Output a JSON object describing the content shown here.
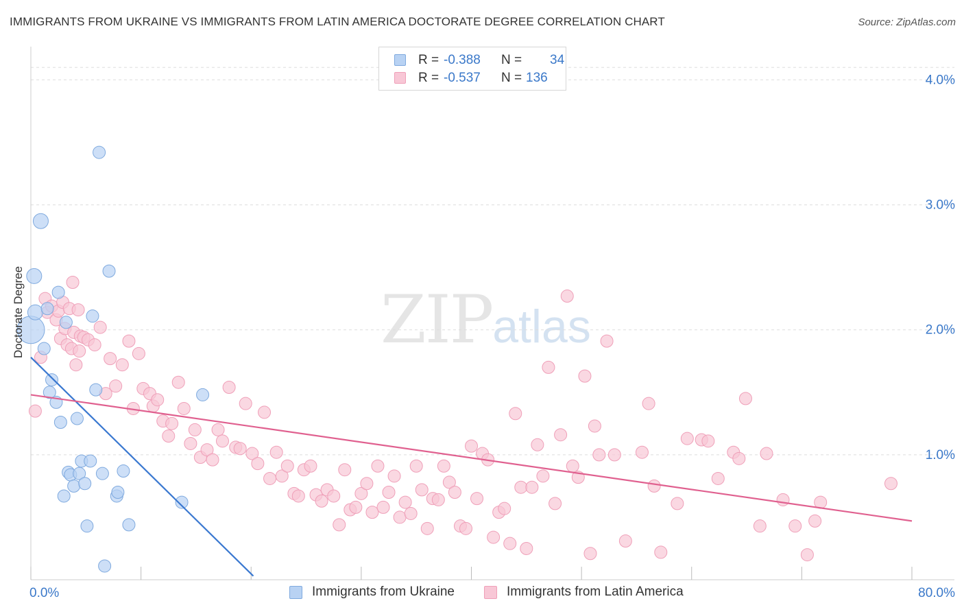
{
  "title": "IMMIGRANTS FROM UKRAINE VS IMMIGRANTS FROM LATIN AMERICA DOCTORATE DEGREE CORRELATION CHART",
  "source": "Source: ZipAtlas.com",
  "watermark": {
    "zip": "ZIP",
    "atlas": "atlas"
  },
  "colors": {
    "ukraine_fill": "#b8d2f3",
    "ukraine_stroke": "#7ea9de",
    "ukraine_line": "#3a78d0",
    "latam_fill": "#f8c7d6",
    "latam_stroke": "#ef9fb8",
    "latam_line": "#e0608f",
    "axis_text": "#3a78c9",
    "grid": "#dddddd"
  },
  "legend": {
    "rows": [
      {
        "r_label": "R =",
        "r_value": "-0.388",
        "n_label": "N =",
        "n_value": "34"
      },
      {
        "r_label": "R =",
        "r_value": "-0.537",
        "n_label": "N =",
        "n_value": "136"
      }
    ]
  },
  "bottom_legend": [
    "Immigrants from Ukraine",
    "Immigrants from Latin America"
  ],
  "chart_data": {
    "type": "scatter",
    "title": "IMMIGRANTS FROM UKRAINE VS IMMIGRANTS FROM LATIN AMERICA DOCTORATE DEGREE CORRELATION CHART",
    "xlabel": "",
    "ylabel": "Doctorate Degree",
    "xlim": [
      0,
      80
    ],
    "ylim": [
      0,
      4.2
    ],
    "x_tick_labels": [
      "0.0%",
      "80.0%"
    ],
    "y_ticks": [
      1.0,
      2.0,
      3.0,
      4.0
    ],
    "y_tick_labels": [
      "1.0%",
      "2.0%",
      "3.0%",
      "4.0%"
    ],
    "grid": true,
    "legend_position": "top-center",
    "series": [
      {
        "name": "Immigrants from Ukraine",
        "r": -0.388,
        "n": 34,
        "trend": [
          [
            0.0,
            1.78
          ],
          [
            20.2,
            0.03
          ]
        ],
        "points": [
          [
            0.0,
            2.0
          ],
          [
            0.3,
            2.43
          ],
          [
            0.4,
            2.14
          ],
          [
            0.9,
            2.87
          ],
          [
            1.2,
            1.85
          ],
          [
            1.5,
            2.17
          ],
          [
            1.7,
            1.5
          ],
          [
            1.9,
            1.6
          ],
          [
            2.3,
            1.42
          ],
          [
            2.5,
            2.3
          ],
          [
            2.7,
            1.26
          ],
          [
            3.0,
            0.67
          ],
          [
            3.2,
            2.06
          ],
          [
            3.4,
            0.86
          ],
          [
            3.6,
            0.84
          ],
          [
            3.9,
            0.75
          ],
          [
            4.2,
            1.29
          ],
          [
            4.4,
            0.85
          ],
          [
            4.6,
            0.95
          ],
          [
            4.9,
            0.77
          ],
          [
            5.1,
            0.43
          ],
          [
            5.4,
            0.95
          ],
          [
            5.6,
            2.11
          ],
          [
            5.9,
            1.52
          ],
          [
            6.2,
            3.42
          ],
          [
            6.5,
            0.85
          ],
          [
            6.7,
            0.11
          ],
          [
            7.1,
            2.47
          ],
          [
            7.8,
            0.67
          ],
          [
            7.9,
            0.7
          ],
          [
            8.4,
            0.87
          ],
          [
            8.9,
            0.44
          ],
          [
            13.7,
            0.62
          ],
          [
            15.6,
            1.48
          ]
        ]
      },
      {
        "name": "Immigrants from Latin America",
        "r": -0.537,
        "n": 136,
        "trend": [
          [
            0.0,
            1.48
          ],
          [
            80.0,
            0.47
          ]
        ],
        "points": [
          [
            0.4,
            1.35
          ],
          [
            0.9,
            1.78
          ],
          [
            1.3,
            2.25
          ],
          [
            1.5,
            2.14
          ],
          [
            1.9,
            2.19
          ],
          [
            2.3,
            2.08
          ],
          [
            2.5,
            2.15
          ],
          [
            2.7,
            1.93
          ],
          [
            2.9,
            2.22
          ],
          [
            3.1,
            2.01
          ],
          [
            3.3,
            1.88
          ],
          [
            3.5,
            2.17
          ],
          [
            3.7,
            1.85
          ],
          [
            3.9,
            1.98
          ],
          [
            4.1,
            1.72
          ],
          [
            3.8,
            2.38
          ],
          [
            4.3,
            2.16
          ],
          [
            4.5,
            1.95
          ],
          [
            4.8,
            1.94
          ],
          [
            5.2,
            1.92
          ],
          [
            4.4,
            1.83
          ],
          [
            5.8,
            1.88
          ],
          [
            6.3,
            2.02
          ],
          [
            6.8,
            1.49
          ],
          [
            7.2,
            1.77
          ],
          [
            7.7,
            1.55
          ],
          [
            8.3,
            1.72
          ],
          [
            8.9,
            1.91
          ],
          [
            9.3,
            1.37
          ],
          [
            9.8,
            1.81
          ],
          [
            10.2,
            1.53
          ],
          [
            10.8,
            1.49
          ],
          [
            11.1,
            1.39
          ],
          [
            11.5,
            1.44
          ],
          [
            12.0,
            1.27
          ],
          [
            12.5,
            1.15
          ],
          [
            12.8,
            1.25
          ],
          [
            13.4,
            1.58
          ],
          [
            13.9,
            1.37
          ],
          [
            14.5,
            1.09
          ],
          [
            14.9,
            1.2
          ],
          [
            15.4,
            0.98
          ],
          [
            16.0,
            1.04
          ],
          [
            16.5,
            0.96
          ],
          [
            17.0,
            1.2
          ],
          [
            17.4,
            1.11
          ],
          [
            18.0,
            1.54
          ],
          [
            18.6,
            1.06
          ],
          [
            19.0,
            1.05
          ],
          [
            19.5,
            1.41
          ],
          [
            20.1,
            1.01
          ],
          [
            20.6,
            0.93
          ],
          [
            21.2,
            1.34
          ],
          [
            21.7,
            0.81
          ],
          [
            22.3,
            1.02
          ],
          [
            22.8,
            0.83
          ],
          [
            23.3,
            0.91
          ],
          [
            23.9,
            0.69
          ],
          [
            24.3,
            0.67
          ],
          [
            24.8,
            0.88
          ],
          [
            25.4,
            0.91
          ],
          [
            25.9,
            0.68
          ],
          [
            26.4,
            0.63
          ],
          [
            26.9,
            0.72
          ],
          [
            27.5,
            0.67
          ],
          [
            28.0,
            0.44
          ],
          [
            28.5,
            0.88
          ],
          [
            29.0,
            0.56
          ],
          [
            29.5,
            0.58
          ],
          [
            30.0,
            0.69
          ],
          [
            30.5,
            0.77
          ],
          [
            31.0,
            0.54
          ],
          [
            31.5,
            0.91
          ],
          [
            32.0,
            0.58
          ],
          [
            32.5,
            0.7
          ],
          [
            33.0,
            0.83
          ],
          [
            33.5,
            0.5
          ],
          [
            34.0,
            0.62
          ],
          [
            34.5,
            0.53
          ],
          [
            35.0,
            0.91
          ],
          [
            35.5,
            0.72
          ],
          [
            36.0,
            0.41
          ],
          [
            36.5,
            0.65
          ],
          [
            37.0,
            0.64
          ],
          [
            37.5,
            0.91
          ],
          [
            38.0,
            0.78
          ],
          [
            38.5,
            0.7
          ],
          [
            39.0,
            0.43
          ],
          [
            39.5,
            0.41
          ],
          [
            40.0,
            1.07
          ],
          [
            40.5,
            0.65
          ],
          [
            41.0,
            1.01
          ],
          [
            41.5,
            0.96
          ],
          [
            42.0,
            0.34
          ],
          [
            42.5,
            0.54
          ],
          [
            43.0,
            0.57
          ],
          [
            43.5,
            0.29
          ],
          [
            44.0,
            1.33
          ],
          [
            44.5,
            0.74
          ],
          [
            45.0,
            0.25
          ],
          [
            45.5,
            0.74
          ],
          [
            46.0,
            1.08
          ],
          [
            46.5,
            0.83
          ],
          [
            47.0,
            1.7
          ],
          [
            47.6,
            0.61
          ],
          [
            48.1,
            1.16
          ],
          [
            48.7,
            2.27
          ],
          [
            49.2,
            0.91
          ],
          [
            49.7,
            0.82
          ],
          [
            50.3,
            1.63
          ],
          [
            50.8,
            0.21
          ],
          [
            51.2,
            1.23
          ],
          [
            51.6,
            1.0
          ],
          [
            52.3,
            1.91
          ],
          [
            53.0,
            1.0
          ],
          [
            54.0,
            0.31
          ],
          [
            55.5,
            1.02
          ],
          [
            56.1,
            1.41
          ],
          [
            56.6,
            0.75
          ],
          [
            57.2,
            0.22
          ],
          [
            58.7,
            0.61
          ],
          [
            59.6,
            1.13
          ],
          [
            60.9,
            1.12
          ],
          [
            61.5,
            1.11
          ],
          [
            62.4,
            0.81
          ],
          [
            63.8,
            1.02
          ],
          [
            64.3,
            0.97
          ],
          [
            64.9,
            1.45
          ],
          [
            66.2,
            0.43
          ],
          [
            66.8,
            1.01
          ],
          [
            68.3,
            0.64
          ],
          [
            69.4,
            0.43
          ],
          [
            70.5,
            0.2
          ],
          [
            71.2,
            0.47
          ],
          [
            71.7,
            0.62
          ],
          [
            78.1,
            0.77
          ]
        ]
      }
    ]
  }
}
